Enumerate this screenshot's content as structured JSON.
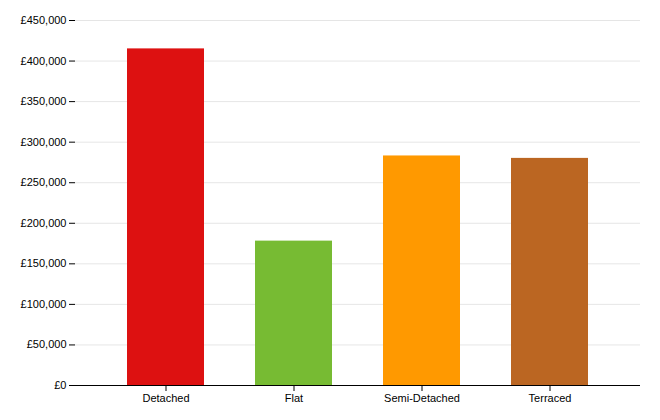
{
  "chart_data": {
    "type": "bar",
    "categories": [
      "Detached",
      "Flat",
      "Semi-Detached",
      "Terraced"
    ],
    "values": [
      415000,
      178000,
      283000,
      280000
    ],
    "colors": [
      "#dd1111",
      "#77bb33",
      "#ff9900",
      "#bb6622"
    ],
    "ylim": [
      0,
      450000
    ],
    "yticks": [
      {
        "value": 0,
        "label": "£0"
      },
      {
        "value": 50000,
        "label": "£50,000"
      },
      {
        "value": 100000,
        "label": "£100,000"
      },
      {
        "value": 150000,
        "label": "£150,000"
      },
      {
        "value": 200000,
        "label": "£200,000"
      },
      {
        "value": 250000,
        "label": "£250,000"
      },
      {
        "value": 300000,
        "label": "£300,000"
      },
      {
        "value": 350000,
        "label": "£350,000"
      },
      {
        "value": 400000,
        "label": "£400,000"
      },
      {
        "value": 450000,
        "label": "£450,000"
      }
    ],
    "grid": true
  }
}
